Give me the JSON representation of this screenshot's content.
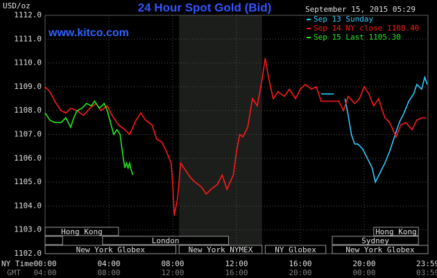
{
  "chart_data": {
    "type": "line",
    "title": "24 Hour Spot Gold (Bid)",
    "subtitle": "www.kitco.com",
    "y_label": "USD/oz",
    "timestamp": "September 15, 2015 05:29",
    "x_label": "NY Time",
    "x2_label": "GMT",
    "xlim": [
      0,
      24
    ],
    "ylim": [
      1102,
      1112
    ],
    "yticks": [
      {
        "value": 1102,
        "label": "1102.0"
      },
      {
        "value": 1103,
        "label": "1103.0"
      },
      {
        "value": 1104,
        "label": "1104.0"
      },
      {
        "value": 1105,
        "label": "1105.0"
      },
      {
        "value": 1106,
        "label": "1106.0"
      },
      {
        "value": 1107,
        "label": "1107.0"
      },
      {
        "value": 1108,
        "label": "1108.0"
      },
      {
        "value": 1109,
        "label": "1109.0"
      },
      {
        "value": 1110,
        "label": "1110.0"
      },
      {
        "value": 1111,
        "label": "1111.0"
      },
      {
        "value": 1112,
        "label": "1112.0"
      }
    ],
    "xticks": [
      {
        "value": 0,
        "label": "00:00"
      },
      {
        "value": 4,
        "label": "04:00"
      },
      {
        "value": 8,
        "label": "08:00"
      },
      {
        "value": 12,
        "label": "12:00"
      },
      {
        "value": 16,
        "label": "16:00"
      },
      {
        "value": 20,
        "label": "20:00"
      },
      {
        "value": 23.98,
        "label": "23:59"
      }
    ],
    "x2tick_labels": [
      "04:00",
      "08:00",
      "12:00",
      "16:00",
      "20:00",
      "00:00",
      "03:59"
    ],
    "grid": true,
    "sessions": [
      [
        {
          "name": "Hong Kong",
          "start": 0,
          "end": 4.6
        },
        {
          "name": "Hong Kong",
          "start": 20.6,
          "end": 23.4
        }
      ],
      [
        {
          "name": "",
          "start": 0,
          "end": 1.1
        },
        {
          "name": "London",
          "start": 3.6,
          "end": 11.5
        },
        {
          "name": "Sydney",
          "start": 18.0,
          "end": 23.4
        }
      ],
      [
        {
          "name": "New York Globex",
          "start": 0,
          "end": 8.2
        },
        {
          "name": "New York NYMEX",
          "start": 8.4,
          "end": 13.6,
          "shaded": true
        },
        {
          "name": "NY Globex",
          "start": 13.8,
          "end": 17.6
        },
        {
          "name": "New York Globex",
          "start": 18.0,
          "end": 24
        }
      ]
    ],
    "series": [
      {
        "name": "Sep 13 Sunday",
        "color": "#33ccff",
        "x": [
          17.3,
          18.1,
          null,
          18.8,
          19.0,
          19.2,
          19.4,
          19.6,
          19.9,
          20.2,
          20.5,
          20.7,
          21.0,
          21.3,
          21.6,
          21.9,
          22.2,
          22.5,
          22.8,
          23.1,
          23.3,
          23.6,
          23.8,
          23.95
        ],
        "values": [
          1108.7,
          1108.7,
          null,
          1108.5,
          1107.8,
          1107.0,
          1106.6,
          1106.6,
          1106.4,
          1106.0,
          1105.6,
          1105.0,
          1105.4,
          1105.8,
          1106.3,
          1106.9,
          1107.5,
          1107.9,
          1108.4,
          1108.7,
          1109.1,
          1108.9,
          1109.4,
          1109.1
        ]
      },
      {
        "name": "Sep 14 NY close 1108.40",
        "color": "#ff1a1a",
        "x": [
          0,
          0.3,
          0.6,
          1.0,
          1.3,
          1.6,
          2.0,
          2.4,
          2.8,
          3.2,
          3.5,
          3.9,
          4.2,
          4.6,
          5.0,
          5.3,
          5.7,
          6.0,
          6.3,
          6.7,
          7.0,
          7.3,
          7.6,
          7.9,
          8.0,
          8.1,
          8.3,
          8.5,
          8.8,
          9.1,
          9.4,
          9.8,
          10.1,
          10.4,
          10.8,
          11.1,
          11.4,
          11.8,
          12.0,
          12.2,
          12.4,
          12.7,
          13.0,
          13.3,
          13.6,
          13.8,
          14.0,
          14.3,
          14.6,
          15.0,
          15.3,
          15.7,
          16.0,
          16.3,
          16.7,
          17.0,
          17.3,
          18.1,
          18.4,
          18.7,
          19.0,
          19.4,
          19.7,
          20.0,
          20.3,
          20.6,
          20.9,
          21.3,
          21.6,
          22.0,
          22.3,
          22.6,
          23.0,
          23.3,
          23.6,
          23.9
        ],
        "values": [
          1109.0,
          1108.8,
          1108.4,
          1108.0,
          1107.9,
          1108.1,
          1108.0,
          1107.8,
          1108.1,
          1108.3,
          1108.0,
          1108.2,
          1107.8,
          1107.4,
          1107.2,
          1107.0,
          1107.6,
          1107.9,
          1107.6,
          1107.4,
          1106.8,
          1106.7,
          1106.3,
          1105.8,
          1104.9,
          1103.6,
          1104.3,
          1105.8,
          1105.5,
          1105.2,
          1105.0,
          1104.8,
          1104.5,
          1104.7,
          1104.9,
          1105.3,
          1104.7,
          1105.3,
          1106.3,
          1107.0,
          1106.9,
          1107.3,
          1108.5,
          1108.2,
          1109.3,
          1110.2,
          1109.4,
          1108.5,
          1108.8,
          1108.6,
          1108.9,
          1108.5,
          1108.9,
          1109.1,
          1108.9,
          1109.0,
          1108.4,
          1108.4,
          1108.4,
          1108.0,
          1108.6,
          1108.3,
          1108.5,
          1109.0,
          1108.7,
          1108.2,
          1108.5,
          1107.7,
          1107.5,
          1106.9,
          1107.4,
          1107.5,
          1107.2,
          1107.6,
          1107.7,
          1107.7
        ]
      },
      {
        "name": "Sep 15 Last 1105.30",
        "color": "#22ee22",
        "x": [
          0,
          0.3,
          0.6,
          1.0,
          1.3,
          1.6,
          1.8,
          2.0,
          2.3,
          2.6,
          2.9,
          3.1,
          3.4,
          3.7,
          3.9,
          4.1,
          4.3,
          4.5,
          4.7,
          4.9,
          5.0,
          5.1,
          5.2,
          5.3,
          5.4,
          5.5
        ],
        "values": [
          1107.9,
          1107.6,
          1107.5,
          1107.5,
          1107.7,
          1107.3,
          1107.7,
          1108.0,
          1108.1,
          1108.3,
          1108.2,
          1108.4,
          1108.1,
          1108.3,
          1108.0,
          1107.5,
          1107.0,
          1107.2,
          1107.0,
          1106.0,
          1105.6,
          1105.8,
          1105.6,
          1105.8,
          1105.5,
          1105.3
        ]
      }
    ]
  }
}
